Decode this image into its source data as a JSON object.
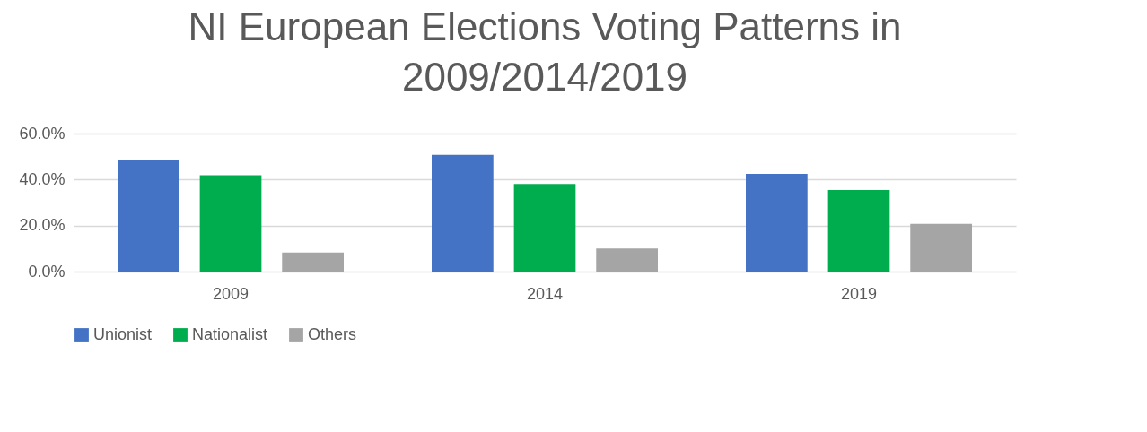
{
  "chart_data": {
    "type": "bar",
    "title": [
      "NI European Elections Voting Patterns in",
      "2009/2014/2019"
    ],
    "categories": [
      "2009",
      "2014",
      "2019"
    ],
    "series": [
      {
        "name": "Unionist",
        "color": "#4472c4",
        "values": [
          48.7,
          50.7,
          42.5
        ]
      },
      {
        "name": "Nationalist",
        "color": "#00ad4e",
        "values": [
          41.9,
          38.1,
          35.5
        ]
      },
      {
        "name": "Others",
        "color": "#a5a5a5",
        "values": [
          8.3,
          10.0,
          20.7
        ]
      }
    ],
    "ylim": [
      0,
      60
    ],
    "yticks": [
      {
        "value": 0,
        "label": "0.0%"
      },
      {
        "value": 20,
        "label": "20.0%"
      },
      {
        "value": 40,
        "label": "40.0%"
      },
      {
        "value": 60,
        "label": "60.0%"
      }
    ],
    "grid": "y",
    "legend": "bottom"
  }
}
